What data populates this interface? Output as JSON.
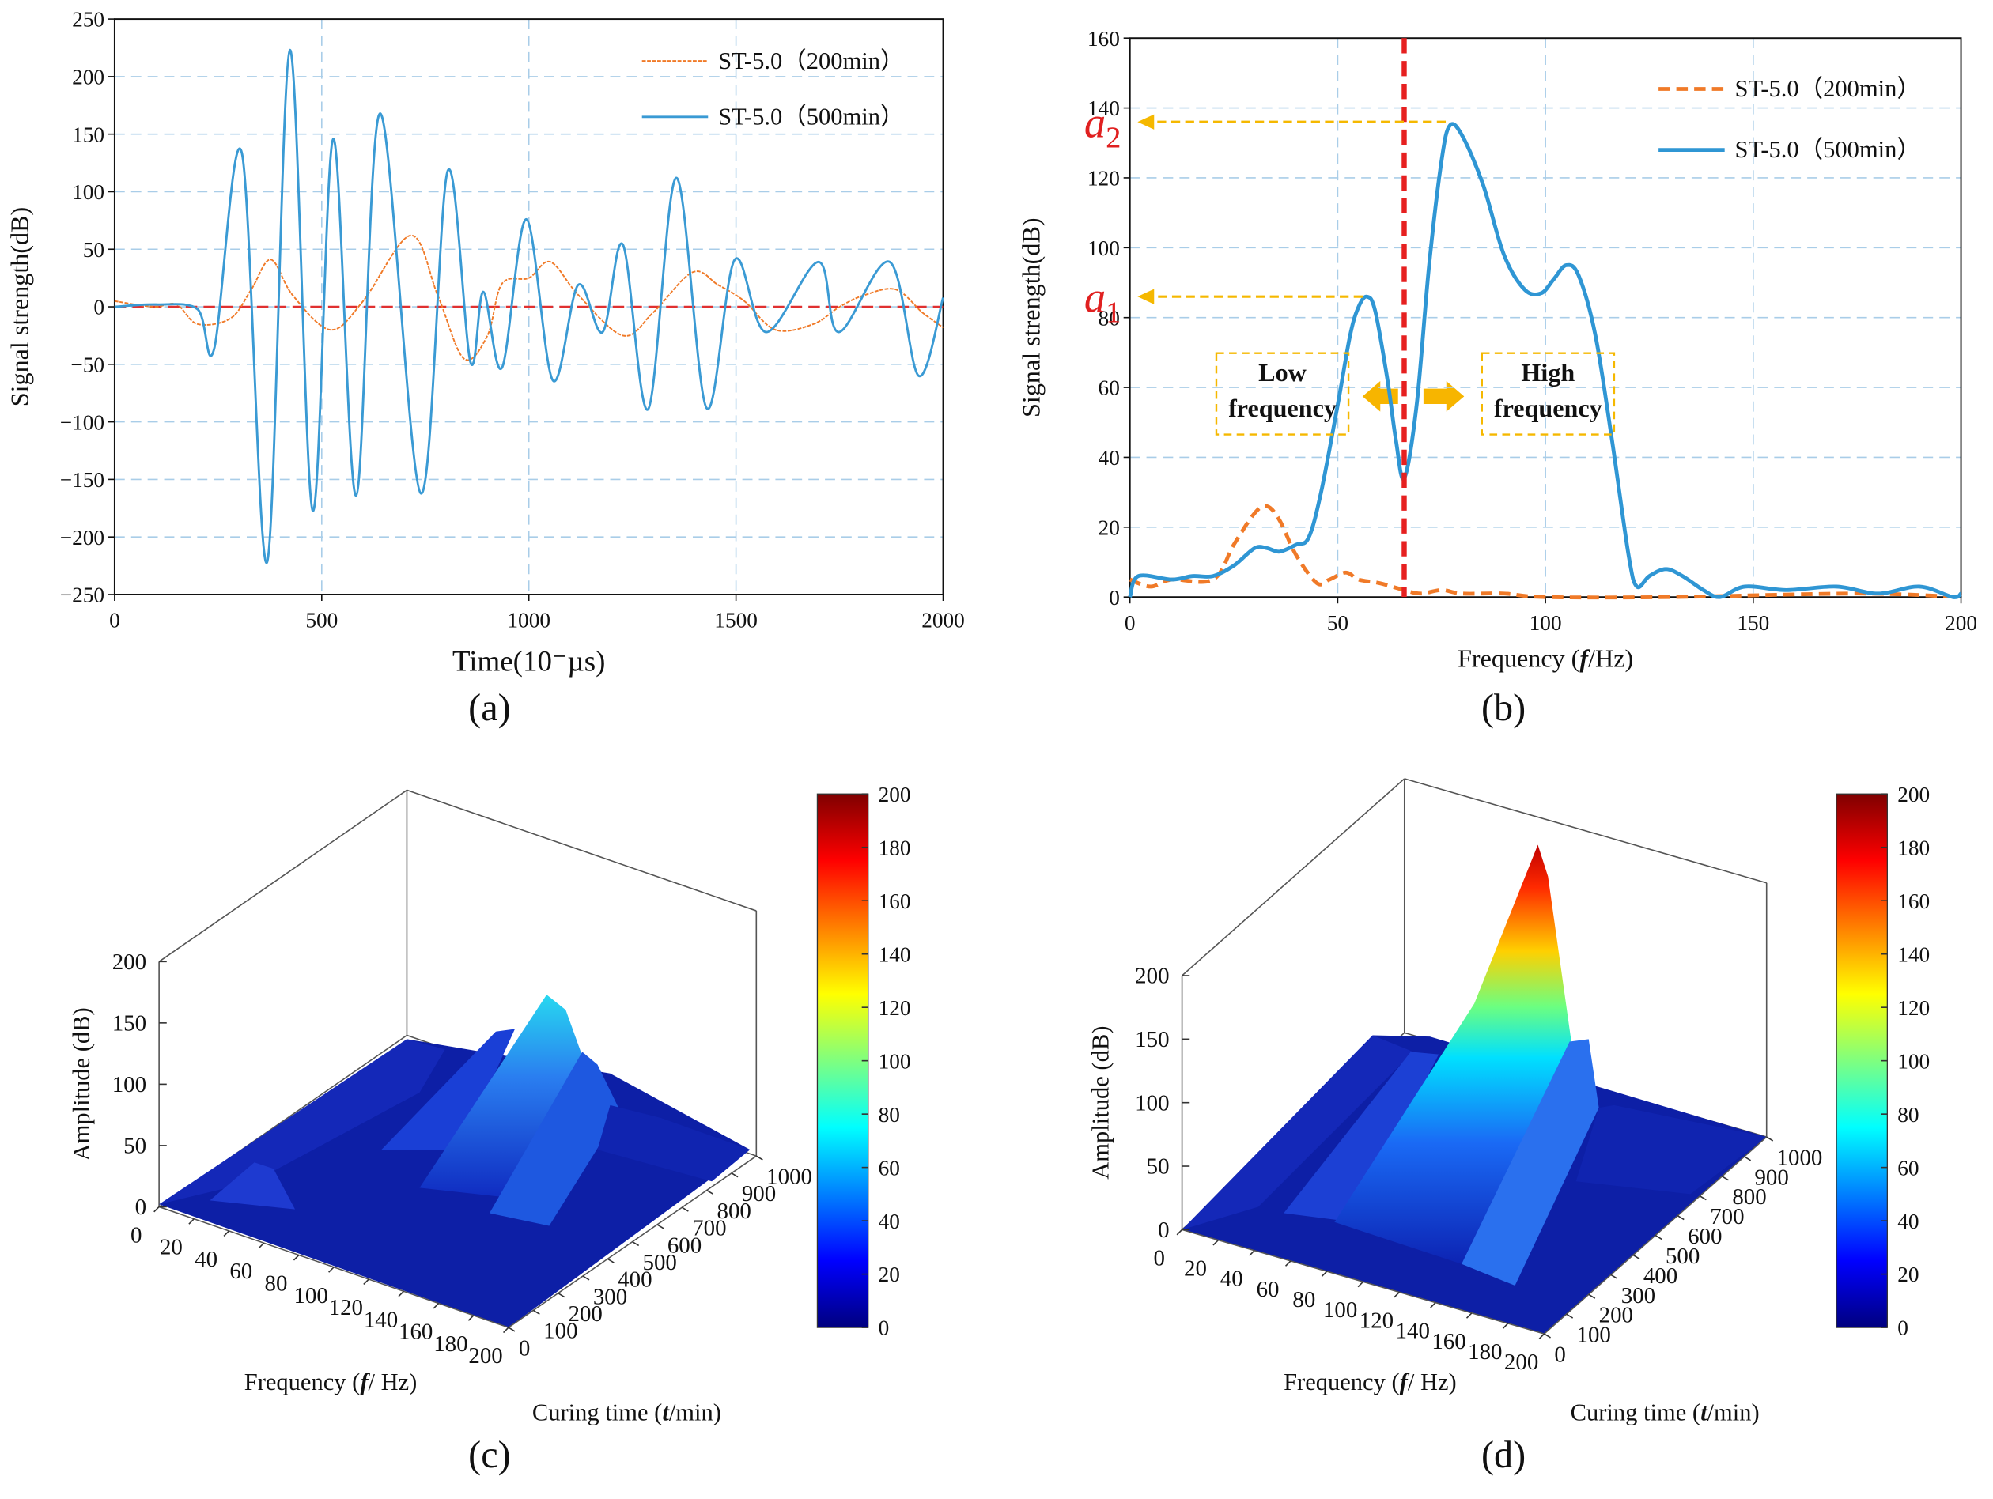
{
  "chart_data": [
    {
      "type": "line",
      "panel_label": "(a)",
      "xlabel": "Time(10⁻µs)",
      "ylabel": "Signal strength(dB)",
      "xlim": [
        0,
        2000
      ],
      "ylim": [
        -250,
        250
      ],
      "xticks": [
        0,
        500,
        1000,
        1500,
        2000
      ],
      "yticks": [
        {
          "value": -250,
          "label": "−250"
        },
        {
          "value": -200,
          "label": "−200"
        },
        {
          "value": -150,
          "label": "−150"
        },
        {
          "value": -100,
          "label": "−100"
        },
        {
          "value": -50,
          "label": "−50"
        },
        0,
        50,
        100,
        150,
        200,
        250
      ],
      "grid": true,
      "legend": "upper right",
      "reference_y": 0,
      "reference_color": "#e03030",
      "series": [
        {
          "name": "ST-5.0（200min）",
          "color": "#f07a28",
          "style": "dashed",
          "x": [
            0,
            50,
            100,
            150,
            200,
            280,
            330,
            377,
            430,
            521,
            600,
            715,
            780,
            843,
            900,
            935,
            1000,
            1052,
            1120,
            1227,
            1300,
            1395,
            1457,
            1520,
            1595,
            1687,
            1750,
            1809,
            1886,
            1950,
            2000
          ],
          "values": [
            5,
            2,
            0,
            2,
            -15,
            -10,
            15,
            41,
            10,
            -20,
            5,
            62,
            10,
            -45,
            -25,
            20,
            25,
            39,
            10,
            -25,
            -5,
            30,
            19,
            5,
            -20,
            -15,
            0,
            10,
            15,
            -5,
            -18
          ]
        },
        {
          "name": "ST-5.0（500min）",
          "color": "#3a9ad4",
          "style": "solid",
          "x": [
            0,
            100,
            200,
            240,
            307,
            368,
            423,
            478,
            528,
            583,
            641,
            739,
            804,
            859,
            890,
            935,
            994,
            1058,
            1119,
            1178,
            1227,
            1288,
            1356,
            1429,
            1497,
            1573,
            1699,
            1748,
            1871,
            1941,
            2000
          ],
          "values": [
            0,
            2,
            -2,
            -37,
            134,
            -222,
            223,
            -177,
            146,
            -164,
            168,
            -162,
            118,
            -48,
            13,
            -53,
            76,
            -64,
            19,
            -22,
            54,
            -89,
            112,
            -88,
            41,
            -22,
            39,
            -22,
            39,
            -60,
            8
          ]
        }
      ]
    },
    {
      "type": "line",
      "panel_label": "(b)",
      "xlabel": [
        "Frequency (",
        "f",
        "/Hz)"
      ],
      "ylabel": "Signal strength(dB)",
      "xlim": [
        0,
        200
      ],
      "ylim": [
        0,
        160
      ],
      "xticks": [
        0,
        50,
        100,
        150,
        200
      ],
      "yticks": [
        0,
        20,
        40,
        60,
        80,
        100,
        120,
        140,
        160
      ],
      "grid": true,
      "legend": "upper right",
      "reference_x": 66,
      "reference_color": "#e62020",
      "peak_annotations": [
        {
          "label": "a",
          "subscript": "1",
          "x": 56,
          "y": 86
        },
        {
          "label": "a",
          "subscript": "2",
          "x": 76,
          "y": 136
        }
      ],
      "region_labels": [
        [
          "Low",
          "frequency"
        ],
        [
          "High",
          "frequency"
        ]
      ],
      "series": [
        {
          "name": "ST-5.0（200min）",
          "color": "#f07a28",
          "style": "dashed",
          "x": [
            0,
            5,
            10,
            20,
            25,
            30,
            33,
            36,
            40,
            45,
            48,
            52,
            55,
            60,
            66,
            70,
            75,
            80,
            90,
            100,
            130,
            175,
            200
          ],
          "values": [
            5,
            3,
            5,
            5,
            15,
            24,
            26,
            22,
            12,
            4,
            5,
            7,
            5,
            4,
            2,
            1,
            2,
            1,
            1,
            0,
            0,
            1,
            0
          ]
        },
        {
          "name": "ST-5.0（500min）",
          "color": "#2f96d4",
          "style": "solid",
          "x": [
            0,
            2,
            10,
            15,
            20,
            25,
            30,
            33,
            36,
            40,
            43,
            46,
            50,
            53,
            55,
            57,
            59,
            62,
            64,
            66,
            69,
            72,
            75,
            77,
            80,
            85,
            90,
            95,
            99,
            102,
            105,
            108,
            112,
            116,
            120,
            122,
            125,
            129,
            133,
            138,
            142,
            148,
            158,
            170,
            180,
            190,
            198,
            200
          ],
          "values": [
            0,
            6,
            5,
            6,
            6,
            9,
            14,
            14,
            13,
            15,
            17,
            30,
            55,
            75,
            83,
            86,
            82,
            62,
            45,
            34,
            55,
            95,
            125,
            135,
            132,
            118,
            98,
            88,
            87,
            91,
            95,
            92,
            75,
            45,
            12,
            3,
            6,
            8,
            6,
            2,
            0,
            3,
            2,
            3,
            1,
            3,
            0,
            1
          ]
        }
      ]
    },
    {
      "type": "surface3d",
      "panel_label": "(c)",
      "zlabel": "Amplitude (dB)",
      "xlabel": [
        "Frequency (",
        "f",
        "/ Hz)"
      ],
      "ylabel": [
        "Curing time (",
        "t",
        "/min)"
      ],
      "xlim": [
        0,
        200
      ],
      "ylim": [
        0,
        1000
      ],
      "zlim": [
        0,
        200
      ],
      "clim": [
        0,
        200
      ],
      "xticks": [
        0,
        20,
        40,
        60,
        80,
        100,
        120,
        140,
        160,
        180,
        200
      ],
      "yticks": [
        0,
        100,
        200,
        300,
        400,
        500,
        600,
        700,
        800,
        900,
        1000
      ],
      "zticks": [
        0,
        50,
        100,
        150,
        200
      ],
      "colorbar_ticks": [
        0,
        20,
        40,
        60,
        80,
        100,
        120,
        140,
        160,
        180,
        200
      ]
    },
    {
      "type": "surface3d",
      "panel_label": "(d)",
      "zlabel": "Amplitude (dB)",
      "xlabel": [
        "Frequency (",
        "f",
        "/ Hz)"
      ],
      "ylabel": [
        "Curing time (",
        "t",
        "/min)"
      ],
      "xlim": [
        0,
        200
      ],
      "ylim": [
        0,
        1000
      ],
      "zlim": [
        0,
        200
      ],
      "clim": [
        0,
        200
      ],
      "xticks": [
        0,
        20,
        40,
        60,
        80,
        100,
        120,
        140,
        160,
        180,
        200
      ],
      "yticks": [
        0,
        100,
        200,
        300,
        400,
        500,
        600,
        700,
        800,
        900,
        1000
      ],
      "zticks": [
        0,
        50,
        100,
        150,
        200
      ],
      "colorbar_ticks": [
        0,
        20,
        40,
        60,
        80,
        100,
        120,
        140,
        160,
        180,
        200
      ]
    }
  ]
}
